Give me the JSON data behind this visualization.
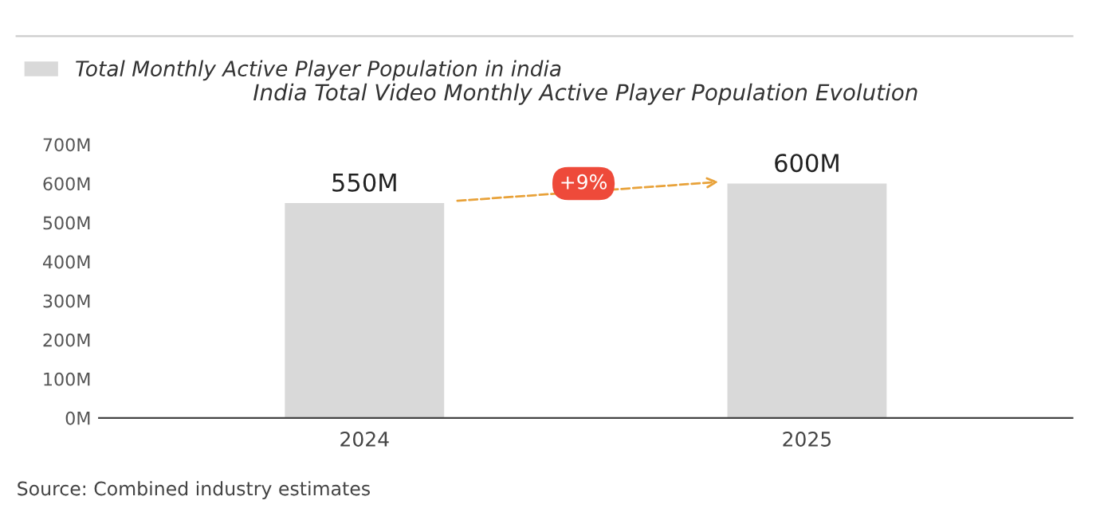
{
  "chart_data": {
    "type": "bar",
    "title": "India Total Video Monthly Active Player Population Evolution",
    "categories": [
      "2024",
      "2025"
    ],
    "series": [
      {
        "name": "Total Monthly Active Player Population in india",
        "color": "#d9d9d9",
        "values": [
          550,
          600
        ]
      }
    ],
    "value_labels": [
      "550M",
      "600M"
    ],
    "ylim": [
      0,
      700
    ],
    "yticks": [
      {
        "value": 0,
        "label": "0M"
      },
      {
        "value": 100,
        "label": "100M"
      },
      {
        "value": 200,
        "label": "200M"
      },
      {
        "value": 300,
        "label": "300M"
      },
      {
        "value": 400,
        "label": "400M"
      },
      {
        "value": 500,
        "label": "500M"
      },
      {
        "value": 600,
        "label": "600M"
      },
      {
        "value": 700,
        "label": "700M"
      }
    ],
    "grid": false,
    "legend": "top left",
    "annotations": [
      "+9%",
      "Source: Combined industry estimates"
    ]
  }
}
